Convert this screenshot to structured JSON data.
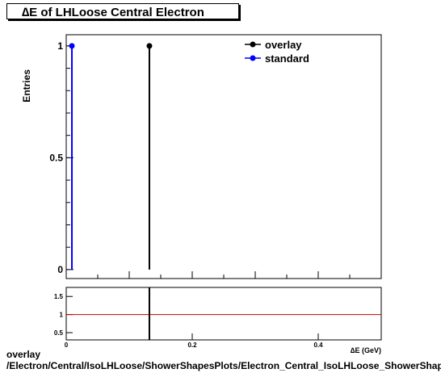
{
  "chart_data": {
    "type": "scatter",
    "title": "∆E of LHLoose Central  Electron",
    "ylabel": "Entries",
    "xlabel": "∆E (GeV)",
    "xlim": [
      0,
      0.5
    ],
    "ylim": [
      -0.04,
      1.05
    ],
    "x_ticks": [
      0,
      0.2,
      0.4
    ],
    "x_tick_labels": [
      "0",
      "0.2",
      "0.4"
    ],
    "y_ticks": [
      0,
      0.5,
      1
    ],
    "y_tick_labels": [
      "0",
      "0.5",
      "1"
    ],
    "legend_position": "top-right",
    "series": [
      {
        "name": "overlay",
        "color": "#000000",
        "points": [
          {
            "x": 0.132,
            "y": 1
          }
        ]
      },
      {
        "name": "standard",
        "color": "#0000ff",
        "points": [
          {
            "x": 0.009,
            "y": 1
          }
        ]
      }
    ],
    "ratio_panel": {
      "ylim": [
        0.3,
        1.75
      ],
      "y_ticks": [
        0.5,
        1,
        1.5
      ],
      "y_tick_labels": [
        "0.5",
        "1",
        "1.5"
      ],
      "reference_line": 1,
      "reference_color": "#cc0000",
      "marker_x": 0.132
    }
  },
  "caption": {
    "line1": "overlay",
    "line2": "/Electron/Central/IsoLHLoose/ShowerShapesPlots/Electron_Central_IsoLHLoose_ShowerShapesPlots_dE"
  }
}
